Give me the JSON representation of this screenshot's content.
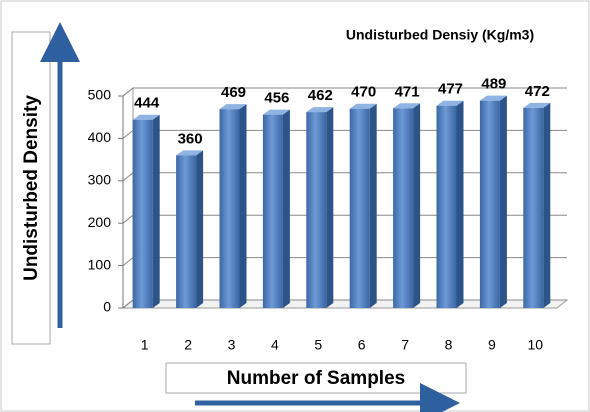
{
  "chart_data": {
    "type": "bar",
    "title": "Undisturbed Densiy (Kg/m3)",
    "x_label": "Number of Samples",
    "y_label": "Undisturbed Density",
    "categories": [
      "1",
      "2",
      "3",
      "4",
      "5",
      "6",
      "7",
      "8",
      "9",
      "10"
    ],
    "values": [
      444,
      360,
      469,
      456,
      462,
      470,
      471,
      477,
      489,
      472
    ],
    "color": "#4a7ebb",
    "ylim": [
      0,
      500
    ],
    "yticks": [
      0,
      100,
      200,
      300,
      400,
      500
    ],
    "grid": true
  }
}
